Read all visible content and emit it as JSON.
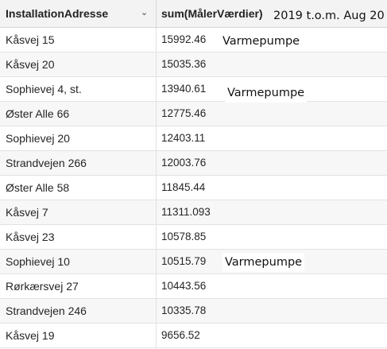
{
  "table": {
    "columns": {
      "address": "InstallationAdresse",
      "value": "sum(MålerVærdier)"
    },
    "header_note": "2019 t.o.m. Aug 20",
    "rows": [
      {
        "address": "Kåsvej 15",
        "value": "15992.46",
        "note": "Varmepumpe"
      },
      {
        "address": "Kåsvej 20",
        "value": "15035.36",
        "note": ""
      },
      {
        "address": "Sophievej 4, st.",
        "value": "13940.61",
        "note": "Varmepumpe"
      },
      {
        "address": "Øster Alle 66",
        "value": "12775.46",
        "note": ""
      },
      {
        "address": "Sophievej 20",
        "value": "12403.11",
        "note": ""
      },
      {
        "address": "Strandvejen 266",
        "value": "12003.76",
        "note": ""
      },
      {
        "address": "Øster Alle 58",
        "value": "11845.44",
        "note": ""
      },
      {
        "address": "Kåsvej 7",
        "value": "11311.093",
        "note": ""
      },
      {
        "address": "Kåsvej 23",
        "value": "10578.85",
        "note": ""
      },
      {
        "address": "Sophievej 10",
        "value": "10515.79",
        "note": "Varmepumpe"
      },
      {
        "address": "Rørkærsvej 27",
        "value": "10443.56",
        "note": ""
      },
      {
        "address": "Strandvejen 246",
        "value": "10335.78",
        "note": ""
      },
      {
        "address": "Kåsvej 19",
        "value": "9656.52",
        "note": ""
      }
    ]
  },
  "icons": {
    "sort": "chevron-down-icon"
  }
}
